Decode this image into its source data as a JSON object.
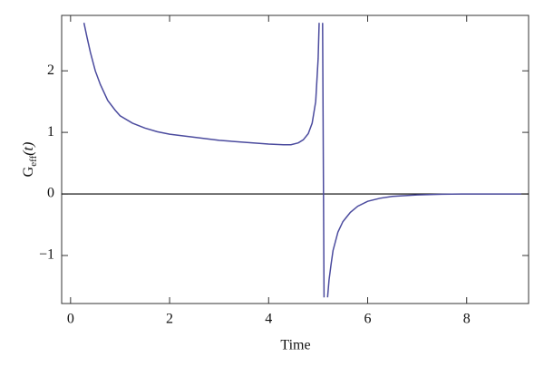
{
  "chart_data": {
    "type": "line",
    "x_label": "Time",
    "y_label": {
      "main": "G",
      "subscript": "eff",
      "argument": "(t)"
    },
    "series": [
      {
        "color": "#4b4b9e",
        "x": [
          0.27,
          0.33,
          0.4,
          0.5,
          0.6,
          0.75,
          0.9,
          1.0,
          1.25,
          1.5,
          1.75,
          2.0,
          2.5,
          3.0,
          3.5,
          4.0,
          4.3,
          4.45,
          4.6,
          4.7,
          4.8,
          4.88,
          4.95,
          5.0,
          5.02,
          null,
          5.09,
          5.12,
          null,
          5.19,
          5.22,
          5.26,
          5.3,
          5.4,
          5.5,
          5.65,
          5.8,
          6.0,
          6.25,
          6.5,
          7.0,
          7.5,
          8.0,
          9.1
        ],
        "values": [
          2.78,
          2.55,
          2.3,
          2.0,
          1.78,
          1.52,
          1.36,
          1.27,
          1.15,
          1.07,
          1.01,
          0.97,
          0.92,
          0.87,
          0.84,
          0.81,
          0.8,
          0.8,
          0.83,
          0.88,
          0.98,
          1.15,
          1.5,
          2.2,
          2.78,
          null,
          2.78,
          -1.68,
          null,
          -1.68,
          -1.4,
          -1.15,
          -0.92,
          -0.62,
          -0.45,
          -0.3,
          -0.2,
          -0.12,
          -0.07,
          -0.04,
          -0.015,
          -0.005,
          0,
          0
        ]
      }
    ],
    "xlim": [
      -0.18,
      9.25
    ],
    "ylim": [
      -1.78,
      2.9
    ],
    "xticks": [
      0,
      2,
      4,
      6,
      8
    ],
    "yticks": [
      -1,
      0,
      1,
      2
    ],
    "zero_line": true,
    "grid": false
  }
}
